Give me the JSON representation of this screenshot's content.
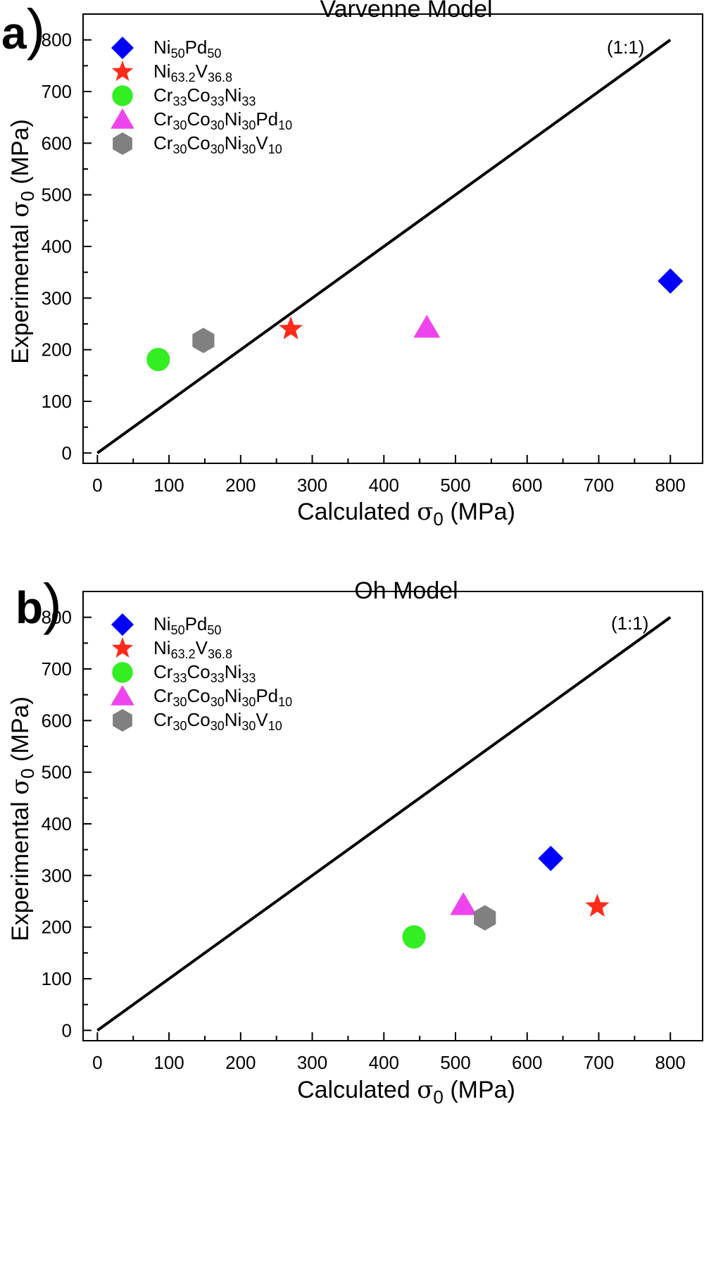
{
  "chart_data": [
    {
      "type": "scatter",
      "panel_label": "a",
      "title": "Varvenne Model",
      "xlabel": "Calculated σ0 (MPa)",
      "ylabel": "Experimental σ0 (MPa)",
      "xlim": [
        -20,
        845
      ],
      "ylim": [
        -20,
        850
      ],
      "xticks": [
        0,
        100,
        200,
        300,
        400,
        500,
        600,
        700,
        800
      ],
      "yticks": [
        0,
        100,
        200,
        300,
        400,
        500,
        600,
        700,
        800
      ],
      "legend_position": "top-left",
      "reference_line": {
        "label": "(1:1)",
        "x": [
          0,
          800
        ],
        "y": [
          0,
          800
        ]
      },
      "series": [
        {
          "name": "Ni50Pd50",
          "marker": "diamond",
          "color": "#0000ff",
          "x": 800,
          "y": 333
        },
        {
          "name": "Ni63.2V36.8",
          "marker": "star",
          "color": "#ff2a1a",
          "x": 270,
          "y": 240
        },
        {
          "name": "Cr33Co33Ni33",
          "marker": "circle",
          "color": "#33ee22",
          "x": 85,
          "y": 181
        },
        {
          "name": "Cr30Co30Ni30Pd10",
          "marker": "triangle",
          "color": "#ee44ee",
          "x": 460,
          "y": 243
        },
        {
          "name": "Cr30Co30Ni30V10",
          "marker": "hexagon",
          "color": "#808080",
          "x": 148,
          "y": 218
        }
      ]
    },
    {
      "type": "scatter",
      "panel_label": "b",
      "title": "Oh Model",
      "xlabel": "Calculated σ0 (MPa)",
      "ylabel": "Experimental σ0 (MPa)",
      "xlim": [
        -20,
        845
      ],
      "ylim": [
        -20,
        850
      ],
      "xticks": [
        0,
        100,
        200,
        300,
        400,
        500,
        600,
        700,
        800
      ],
      "yticks": [
        0,
        100,
        200,
        300,
        400,
        500,
        600,
        700,
        800
      ],
      "legend_position": "top-left",
      "reference_line": {
        "label": "(1:1)",
        "x": [
          0,
          800
        ],
        "y": [
          0,
          800
        ]
      },
      "series": [
        {
          "name": "Ni50Pd50",
          "marker": "diamond",
          "color": "#0000ff",
          "x": 633,
          "y": 333
        },
        {
          "name": "Ni63.2V36.8",
          "marker": "star",
          "color": "#ff2a1a",
          "x": 698,
          "y": 240
        },
        {
          "name": "Cr33Co33Ni33",
          "marker": "circle",
          "color": "#33ee22",
          "x": 442,
          "y": 181
        },
        {
          "name": "Cr30Co30Ni30Pd10",
          "marker": "triangle",
          "color": "#ee44ee",
          "x": 511,
          "y": 243
        },
        {
          "name": "Cr30Co30Ni30V10",
          "marker": "hexagon",
          "color": "#808080",
          "x": 541,
          "y": 218
        }
      ]
    }
  ]
}
